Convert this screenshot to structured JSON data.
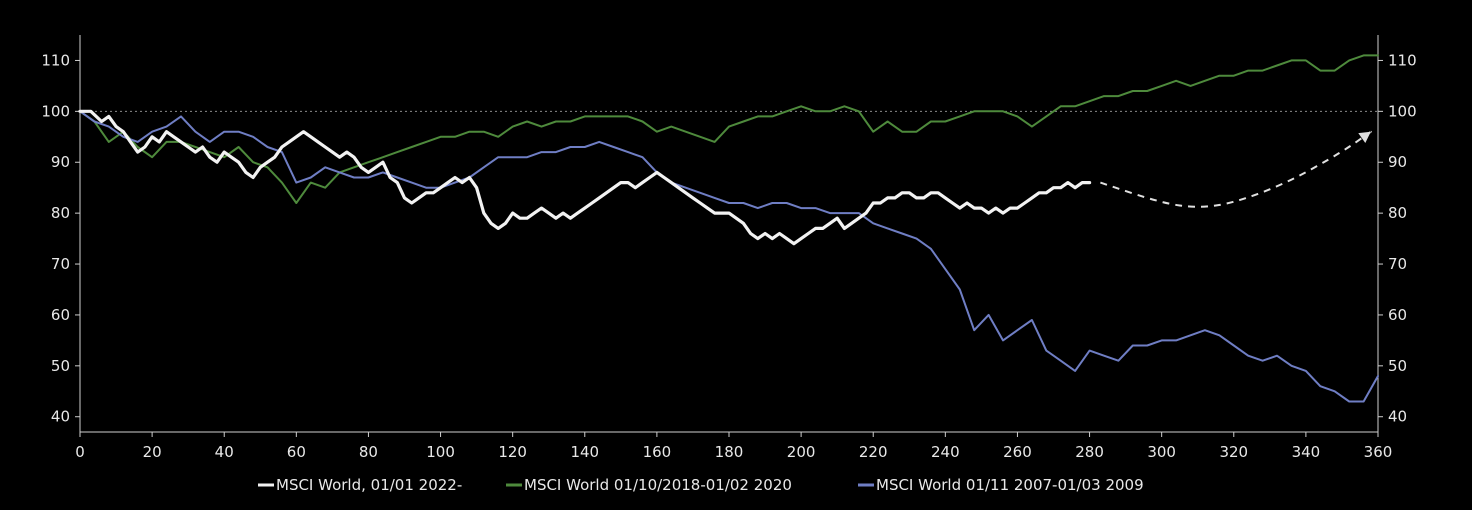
{
  "chart_data": {
    "type": "line",
    "title": "",
    "xlabel": "",
    "ylabel": "",
    "xlim": [
      0,
      360
    ],
    "ylim": [
      37,
      115
    ],
    "x_ticks": [
      0,
      20,
      40,
      60,
      80,
      100,
      120,
      140,
      160,
      180,
      200,
      220,
      240,
      260,
      280,
      300,
      320,
      340,
      360
    ],
    "y_ticks": [
      40,
      50,
      60,
      70,
      80,
      90,
      100,
      110
    ],
    "y_axis_right": true,
    "grid": false,
    "reference_line": {
      "y": 100,
      "style": "dotted",
      "color": "#8a8a8a"
    },
    "legend_position": "bottom-center",
    "projection": {
      "style": "dashed",
      "color": "#e0e0e0",
      "arrow": true,
      "x": [
        283,
        300,
        310,
        320,
        335,
        350,
        358
      ],
      "y": [
        86,
        82,
        81,
        82,
        86,
        92,
        96
      ]
    },
    "series": [
      {
        "name": "MSCI World, 01/01 2022-",
        "color": "#f2f2f2",
        "width": 3.2,
        "x": [
          0,
          3,
          6,
          8,
          10,
          12,
          14,
          16,
          18,
          20,
          22,
          24,
          26,
          28,
          30,
          32,
          34,
          36,
          38,
          40,
          42,
          44,
          46,
          48,
          50,
          52,
          54,
          56,
          58,
          60,
          62,
          64,
          66,
          68,
          70,
          72,
          74,
          76,
          78,
          80,
          82,
          84,
          86,
          88,
          90,
          92,
          94,
          96,
          98,
          100,
          102,
          104,
          106,
          108,
          110,
          112,
          114,
          116,
          118,
          120,
          122,
          124,
          126,
          128,
          130,
          132,
          134,
          136,
          138,
          140,
          142,
          144,
          146,
          148,
          150,
          152,
          154,
          156,
          158,
          160,
          162,
          164,
          166,
          168,
          170,
          172,
          174,
          176,
          178,
          180,
          182,
          184,
          186,
          188,
          190,
          192,
          194,
          196,
          198,
          200,
          202,
          204,
          206,
          208,
          210,
          212,
          214,
          216,
          218,
          220,
          222,
          224,
          226,
          228,
          230,
          232,
          234,
          236,
          238,
          240,
          242,
          244,
          246,
          248,
          250,
          252,
          254,
          256,
          258,
          260,
          262,
          264,
          266,
          268,
          270,
          272,
          274,
          276,
          278,
          280
        ],
        "y": [
          100,
          100,
          98,
          99,
          97,
          96,
          94,
          92,
          93,
          95,
          94,
          96,
          95,
          94,
          93,
          92,
          93,
          91,
          90,
          92,
          91,
          90,
          88,
          87,
          89,
          90,
          91,
          93,
          94,
          95,
          96,
          95,
          94,
          93,
          92,
          91,
          92,
          91,
          89,
          88,
          89,
          90,
          87,
          86,
          83,
          82,
          83,
          84,
          84,
          85,
          86,
          87,
          86,
          87,
          85,
          80,
          78,
          77,
          78,
          80,
          79,
          79,
          80,
          81,
          80,
          79,
          80,
          79,
          80,
          81,
          82,
          83,
          84,
          85,
          86,
          86,
          85,
          86,
          87,
          88,
          87,
          86,
          85,
          84,
          83,
          82,
          81,
          80,
          80,
          80,
          79,
          78,
          76,
          75,
          76,
          75,
          76,
          75,
          74,
          75,
          76,
          77,
          77,
          78,
          79,
          77,
          78,
          79,
          80,
          82,
          82,
          83,
          83,
          84,
          84,
          83,
          83,
          84,
          84,
          83,
          82,
          81,
          82,
          81,
          81,
          80,
          81,
          80,
          81,
          81,
          82,
          83,
          84,
          84,
          85,
          85,
          86,
          85,
          86,
          86
        ]
      },
      {
        "name": "MSCI World 01/10/2018-01/02 2020",
        "color": "#4e8a3c",
        "width": 2,
        "x": [
          0,
          4,
          8,
          12,
          16,
          20,
          24,
          28,
          32,
          36,
          40,
          44,
          48,
          52,
          56,
          60,
          64,
          68,
          72,
          76,
          80,
          84,
          88,
          92,
          96,
          100,
          104,
          108,
          112,
          116,
          120,
          124,
          128,
          132,
          136,
          140,
          144,
          148,
          152,
          156,
          160,
          164,
          168,
          172,
          176,
          180,
          184,
          188,
          192,
          196,
          200,
          204,
          208,
          212,
          216,
          220,
          224,
          228,
          232,
          236,
          240,
          244,
          248,
          252,
          256,
          260,
          264,
          268,
          272,
          276,
          280,
          284,
          288,
          292,
          296,
          300,
          304,
          308,
          312,
          316,
          320,
          324,
          328,
          332,
          336,
          340,
          344,
          348,
          352,
          356,
          360
        ],
        "y": [
          100,
          98,
          94,
          96,
          93,
          91,
          94,
          94,
          93,
          92,
          91,
          93,
          90,
          89,
          86,
          82,
          86,
          85,
          88,
          89,
          90,
          91,
          92,
          93,
          94,
          95,
          95,
          96,
          96,
          95,
          97,
          98,
          97,
          98,
          98,
          99,
          99,
          99,
          99,
          98,
          96,
          97,
          96,
          95,
          94,
          97,
          98,
          99,
          99,
          100,
          101,
          100,
          100,
          101,
          100,
          96,
          98,
          96,
          96,
          98,
          98,
          99,
          100,
          100,
          100,
          99,
          97,
          99,
          101,
          101,
          102,
          103,
          103,
          104,
          104,
          105,
          106,
          105,
          106,
          107,
          107,
          108,
          108,
          109,
          110,
          110,
          108,
          108,
          110,
          111,
          111
        ]
      },
      {
        "name": "MSCI World 01/11 2007-01/03 2009",
        "color": "#6f7ec4",
        "width": 2,
        "x": [
          0,
          4,
          8,
          12,
          16,
          20,
          24,
          28,
          32,
          36,
          40,
          44,
          48,
          52,
          56,
          60,
          64,
          68,
          72,
          76,
          80,
          84,
          88,
          92,
          96,
          100,
          104,
          108,
          112,
          116,
          120,
          124,
          128,
          132,
          136,
          140,
          144,
          148,
          152,
          156,
          160,
          164,
          168,
          172,
          176,
          180,
          184,
          188,
          192,
          196,
          200,
          204,
          208,
          212,
          216,
          220,
          224,
          228,
          232,
          236,
          240,
          244,
          248,
          252,
          256,
          260,
          264,
          268,
          272,
          276,
          280,
          284,
          288,
          292,
          296,
          300,
          304,
          308,
          312,
          316,
          320,
          324,
          328,
          332,
          336,
          340,
          344,
          348,
          352,
          356,
          360
        ],
        "y": [
          100,
          98,
          97,
          95,
          94,
          96,
          97,
          99,
          96,
          94,
          96,
          96,
          95,
          93,
          92,
          86,
          87,
          89,
          88,
          87,
          87,
          88,
          87,
          86,
          85,
          85,
          86,
          87,
          89,
          91,
          91,
          91,
          92,
          92,
          93,
          93,
          94,
          93,
          92,
          91,
          88,
          86,
          85,
          84,
          83,
          82,
          82,
          81,
          82,
          82,
          81,
          81,
          80,
          80,
          80,
          78,
          77,
          76,
          75,
          73,
          69,
          65,
          57,
          60,
          55,
          57,
          59,
          53,
          51,
          49,
          53,
          52,
          51,
          54,
          54,
          55,
          55,
          56,
          57,
          56,
          54,
          52,
          51,
          52,
          50,
          49,
          46,
          45,
          43,
          43,
          48
        ]
      }
    ]
  }
}
